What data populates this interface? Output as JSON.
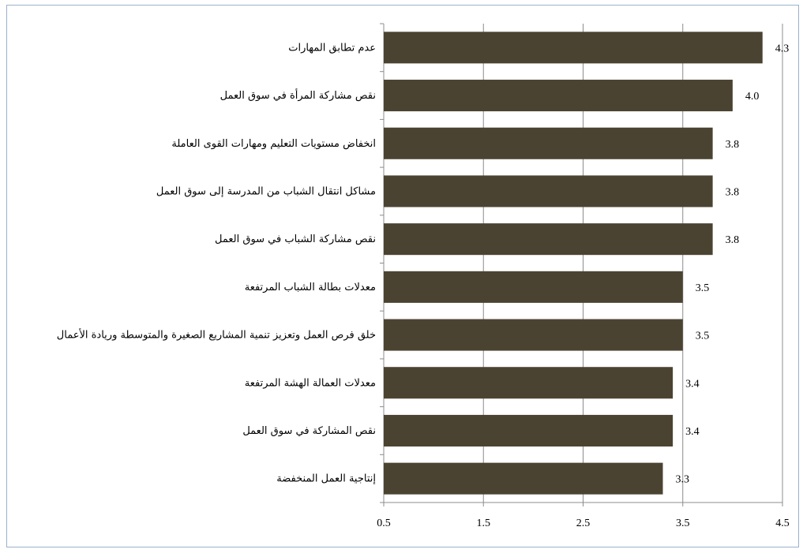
{
  "colors": {
    "bar": "#4b4331",
    "grid": "#8c8c8c",
    "frame": "#9bb1c8"
  },
  "chart_data": {
    "type": "bar",
    "orientation": "horizontal",
    "categories": [
      "عدم تطابق المهارات",
      "نقص مشاركة المرأة في سوق العمل",
      "انخفاض مستويات التعليم ومهارات القوى العاملة",
      "مشاكل انتقال الشباب من المدرسة إلى سوق العمل",
      "نقص مشاركة الشباب في سوق العمل",
      "معدلات بطالة الشباب المرتفعة",
      "خلق فرص العمل وتعزيز تنمية المشاريع الصغيرة والمتوسطة وريادة الأعمال",
      "معدلات العمالة الهشة المرتفعة",
      "نقص المشاركة في سوق العمل",
      "إنتاجية العمل المنخفضة"
    ],
    "values": [
      4.3,
      4.0,
      3.8,
      3.8,
      3.8,
      3.5,
      3.5,
      3.4,
      3.4,
      3.3
    ],
    "value_labels": [
      "4.3",
      "4.0",
      "3.8",
      "3.8",
      "3.8",
      "3.5",
      "3.5",
      "3.4",
      "3.4",
      "3.3"
    ],
    "xlim": [
      0.5,
      4.5
    ],
    "xticks": [
      "0.5",
      "1.5",
      "2.5",
      "3.5",
      "4.5"
    ],
    "grid": "vertical",
    "legend": "none",
    "title": "",
    "xlabel": "",
    "ylabel": ""
  }
}
